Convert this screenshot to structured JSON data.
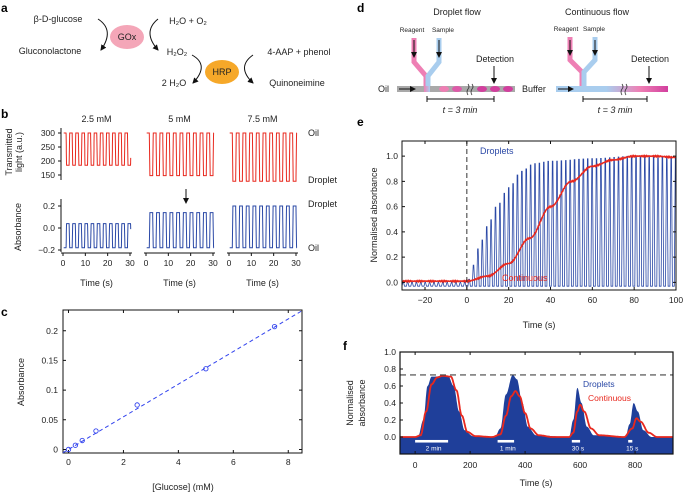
{
  "panels": {
    "a": "a",
    "b": "b",
    "c": "c",
    "d": "d",
    "e": "e",
    "f": "f"
  },
  "colors": {
    "gox": "#f4a6b8",
    "hrp": "#f6a829",
    "red": "#e8281e",
    "blue": "#2a48a6",
    "blue_fill": "#1f3f9a",
    "pink": "#ee7fb4",
    "light_blue": "#a9cdee",
    "magenta": "#d23f9e",
    "oil_gray": "#a9a9a9"
  },
  "reaction": {
    "glucose": "β-D-glucose",
    "gox": "GOx",
    "h2o_o2": "H₂O + O₂",
    "gluconolactone": "Gluconolactone",
    "h2o2": "H₂O₂",
    "hrp": "HRP",
    "aap_phenol": "4-AAP + phenol",
    "water": "2 H₂O",
    "quinoneimine": "Quinoneimine"
  },
  "panel_b": {
    "ylabel_top_1": "Transmitted",
    "ylabel_top_2": "light (a.u.)",
    "ylabel_bottom": "Absorbance",
    "xlabel": "Time (s)",
    "label_oil_top": "Oil",
    "label_droplet_top": "Droplet",
    "label_droplet_bottom": "Droplet",
    "label_oil_bottom": "Oil",
    "top_yticks": [
      "300",
      "250",
      "200",
      "150"
    ],
    "bottom_yticks": [
      "0.2",
      "0.0",
      "−0.2"
    ],
    "xticks": [
      "0",
      "10",
      "20",
      "30"
    ],
    "subplots": [
      {
        "title": "2.5 mM",
        "transmitted_oil": 300,
        "transmitted_droplet": 185,
        "absorbance_droplet": 0.04,
        "absorbance_oil": -0.18,
        "period_s": 2.75
      },
      {
        "title": "5 mM",
        "transmitted_oil": 300,
        "transmitted_droplet": 148,
        "absorbance_droplet": 0.14,
        "absorbance_oil": -0.18,
        "period_s": 3.0
      },
      {
        "title": "7.5 mM",
        "transmitted_oil": 300,
        "transmitted_droplet": 128,
        "absorbance_droplet": 0.2,
        "absorbance_oil": -0.18,
        "period_s": 3.0
      }
    ]
  },
  "schematic": {
    "droplet_title": "Droplet flow",
    "continuous_title": "Continuous flow",
    "reagent": "Reagent",
    "sample": "Sample",
    "detection": "Detection",
    "oil": "Oil",
    "buffer": "Buffer",
    "time": "t = 3 min"
  },
  "chart_data": [
    {
      "type": "scatter",
      "panel": "c",
      "xlabel": "[Glucose] (mM)",
      "ylabel": "Absorbance",
      "xlim": [
        -0.2,
        8.5
      ],
      "ylim": [
        -0.006,
        0.235
      ],
      "xticks": [
        "0",
        "2",
        "4",
        "6",
        "8"
      ],
      "yticks": [
        "0",
        "0.05",
        "0.1",
        "0.15",
        "0.2"
      ],
      "x": [
        0,
        0.25,
        0.5,
        1,
        2.5,
        5,
        7.5
      ],
      "y": [
        0,
        0.007,
        0.015,
        0.031,
        0.075,
        0.136,
        0.207
      ],
      "fit": {
        "style": "dashed",
        "slope": 0.0275,
        "intercept": 0
      }
    },
    {
      "type": "line",
      "panel": "e",
      "xlabel": "Time (s)",
      "ylabel": "Normalised absorbance",
      "xlim": [
        -31,
        100
      ],
      "ylim": [
        -0.06,
        1.12
      ],
      "xticks": [
        "−20",
        "0",
        "20",
        "40",
        "60",
        "80",
        "100"
      ],
      "yticks": [
        "0.0",
        "0.2",
        "0.4",
        "0.6",
        "0.8",
        "1.0"
      ],
      "marker_line_x": 0,
      "series": [
        {
          "name": "Droplets",
          "spike_period_s": 2.1,
          "baseline": -0.03,
          "envelope_x": [
            -31,
            0,
            2,
            4,
            6,
            10,
            14,
            20,
            26,
            32,
            40,
            60,
            80,
            100
          ],
          "envelope_y": [
            0.0,
            0.0,
            0.05,
            0.2,
            0.3,
            0.45,
            0.6,
            0.75,
            0.88,
            0.94,
            0.96,
            0.98,
            1.0,
            0.99
          ]
        },
        {
          "name": "Continuous",
          "x": [
            -31,
            -20,
            -10,
            0,
            10,
            20,
            30,
            40,
            50,
            60,
            70,
            80,
            90,
            100
          ],
          "y": [
            0.01,
            0.01,
            0.01,
            0.01,
            0.05,
            0.15,
            0.35,
            0.6,
            0.8,
            0.92,
            0.97,
            1.0,
            1.0,
            0.99
          ]
        }
      ]
    },
    {
      "type": "area",
      "panel": "f",
      "xlabel": "Time (s)",
      "ylabel": "Normalised absorbance",
      "xlim": [
        -55,
        938
      ],
      "ylim": [
        -0.2,
        1.0
      ],
      "xticks": [
        "0",
        "200",
        "400",
        "600",
        "800"
      ],
      "yticks": [
        "0.0",
        "0.2",
        "0.4",
        "0.6",
        "0.8",
        "1.0"
      ],
      "reference_line_y": 0.73,
      "pulses": [
        {
          "label": "2 min",
          "start": 0,
          "end": 120
        },
        {
          "label": "1 min",
          "start": 300,
          "end": 360
        },
        {
          "label": "30 s",
          "start": 570,
          "end": 600
        },
        {
          "label": "15 s",
          "start": 775,
          "end": 790
        }
      ],
      "series": [
        {
          "name": "Droplets",
          "x": [
            -55,
            10,
            30,
            45,
            60,
            120,
            140,
            160,
            180,
            210,
            290,
            310,
            330,
            355,
            370,
            390,
            410,
            440,
            560,
            575,
            590,
            605,
            625,
            650,
            765,
            780,
            795,
            810,
            830,
            860,
            938
          ],
          "y": [
            0,
            0,
            0.2,
            0.6,
            0.71,
            0.72,
            0.6,
            0.3,
            0.08,
            0.01,
            0,
            0.1,
            0.5,
            0.73,
            0.68,
            0.4,
            0.12,
            0.02,
            0,
            0.2,
            0.58,
            0.4,
            0.12,
            0.02,
            0,
            0.15,
            0.4,
            0.3,
            0.08,
            0,
            0
          ]
        },
        {
          "name": "Continuous",
          "x": [
            -55,
            0,
            20,
            40,
            60,
            80,
            100,
            130,
            150,
            170,
            190,
            220,
            280,
            310,
            330,
            350,
            365,
            380,
            400,
            420,
            450,
            500,
            560,
            575,
            590,
            600,
            615,
            640,
            670,
            760,
            790,
            805,
            820,
            850,
            880,
            938
          ],
          "y": [
            0,
            0,
            0.02,
            0.3,
            0.62,
            0.7,
            0.72,
            0.71,
            0.55,
            0.25,
            0.06,
            0.01,
            0,
            0.03,
            0.25,
            0.48,
            0.54,
            0.48,
            0.28,
            0.1,
            0.02,
            0,
            0,
            0.05,
            0.3,
            0.38,
            0.3,
            0.1,
            0.02,
            0,
            0.1,
            0.22,
            0.18,
            0.05,
            0,
            0
          ]
        }
      ]
    }
  ]
}
